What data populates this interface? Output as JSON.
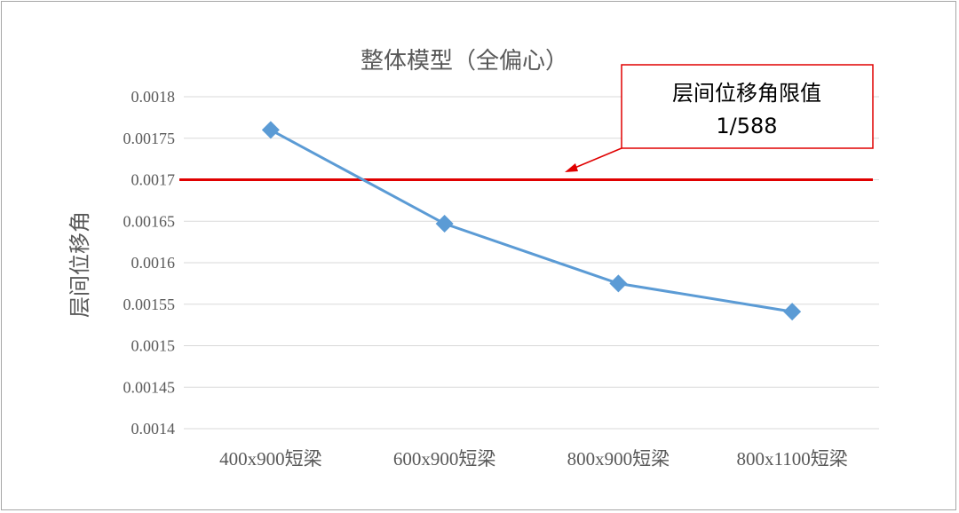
{
  "chart_data": {
    "type": "line",
    "title": "整体模型（全偏心）",
    "xlabel": "",
    "ylabel": "层间位移角",
    "categories": [
      "400x900短梁",
      "600x900短梁",
      "800x900短梁",
      "800x1100短梁"
    ],
    "series": [
      {
        "values": [
          0.00176,
          0.001647,
          0.001575,
          0.001541
        ],
        "color": "#5b9bd5",
        "marker": "diamond"
      }
    ],
    "ylim": [
      0.0014,
      0.0018
    ],
    "yticks": [
      "0.0014",
      "0.00145",
      "0.0015",
      "0.00155",
      "0.0016",
      "0.00165",
      "0.0017",
      "0.00175",
      "0.0018"
    ],
    "grid": true,
    "legend": "none",
    "reference_line": {
      "value": 0.0017,
      "color": "#e00000"
    },
    "annotation": {
      "line1": "层间位移角限值",
      "line2": "1/588",
      "border_color": "#e00000"
    }
  }
}
